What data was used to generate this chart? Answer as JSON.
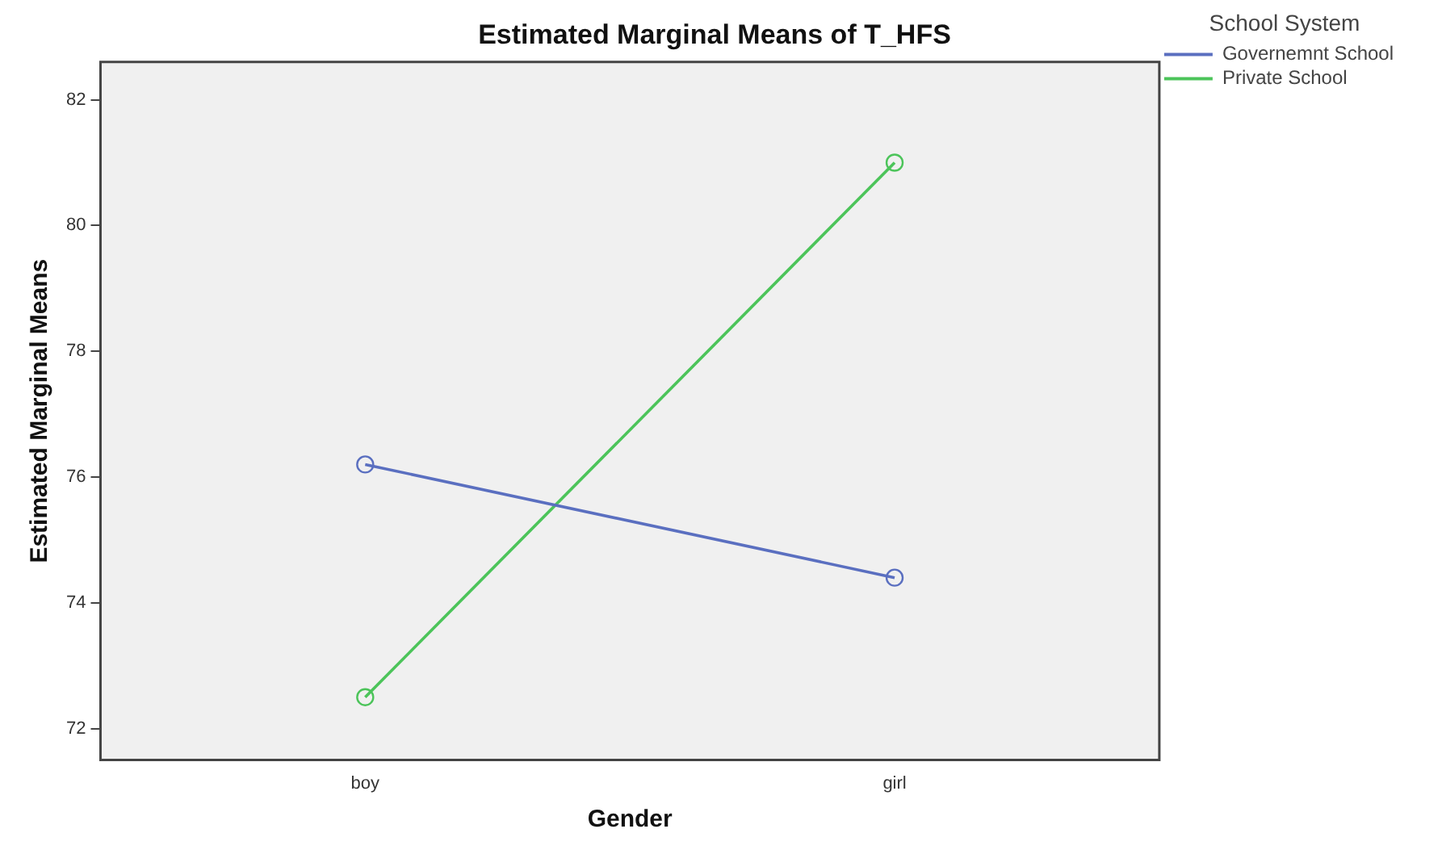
{
  "chart_data": {
    "type": "line",
    "title": "Estimated Marginal Means of T_HFS",
    "xlabel": "Gender",
    "ylabel": "Estimated Marginal Means",
    "legend_title": "School System",
    "categories": [
      "boy",
      "girl"
    ],
    "series": [
      {
        "name": "Governemnt School",
        "color": "#5a6fc0",
        "values": [
          76.2,
          74.4
        ]
      },
      {
        "name": "Private School",
        "color": "#4cc45a",
        "values": [
          72.5,
          81.0
        ]
      }
    ],
    "ylim": [
      71.5,
      82.6
    ],
    "yticks": [
      72,
      74,
      76,
      78,
      80,
      82
    ],
    "grid": false,
    "legend": "top right",
    "marker": "circle",
    "line_style": "solid"
  }
}
